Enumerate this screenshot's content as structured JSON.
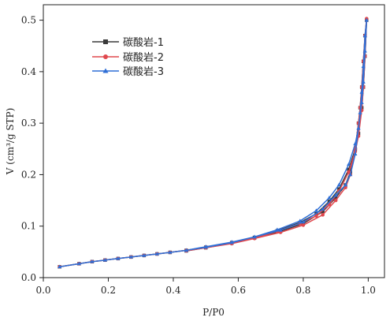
{
  "chart_data": {
    "type": "line",
    "title": "",
    "xlabel": "P/P0",
    "ylabel": "V (cm³/g STP)",
    "xlim": [
      0.0,
      1.05
    ],
    "ylim": [
      0.0,
      0.53
    ],
    "x_ticks": [
      0.0,
      0.2,
      0.4,
      0.6,
      0.8,
      1.0
    ],
    "x_tick_labels": [
      "0.0",
      "0.2",
      "0.4",
      "0.6",
      "0.8",
      "1.0"
    ],
    "y_ticks": [
      0.0,
      0.1,
      0.2,
      0.3,
      0.4,
      0.5
    ],
    "y_tick_labels": [
      "0.0",
      "0.1",
      "0.2",
      "0.3",
      "0.4",
      "0.5"
    ],
    "grid": false,
    "legend_position": "top-left",
    "series": [
      {
        "name": "碳酸岩-1",
        "color": "#3a3a3a",
        "marker": "square",
        "x": [
          0.05,
          0.11,
          0.15,
          0.19,
          0.23,
          0.27,
          0.31,
          0.35,
          0.39,
          0.44,
          0.5,
          0.58,
          0.65,
          0.72,
          0.79,
          0.84,
          0.88,
          0.91,
          0.94,
          0.96,
          0.97,
          0.98,
          0.985,
          0.99,
          0.995,
          0.99,
          0.985,
          0.98,
          0.975,
          0.97,
          0.96,
          0.945,
          0.93,
          0.9,
          0.86,
          0.8,
          0.73,
          0.65,
          0.58,
          0.5,
          0.44
        ],
        "y": [
          0.021,
          0.027,
          0.031,
          0.034,
          0.037,
          0.04,
          0.043,
          0.046,
          0.049,
          0.053,
          0.059,
          0.068,
          0.078,
          0.091,
          0.107,
          0.124,
          0.148,
          0.172,
          0.21,
          0.25,
          0.28,
          0.33,
          0.37,
          0.43,
          0.5,
          0.47,
          0.42,
          0.37,
          0.33,
          0.3,
          0.25,
          0.205,
          0.18,
          0.155,
          0.128,
          0.105,
          0.09,
          0.077,
          0.067,
          0.058,
          0.052
        ]
      },
      {
        "name": "碳酸岩-2",
        "color": "#e0484e",
        "marker": "circle",
        "x": [
          0.05,
          0.11,
          0.15,
          0.19,
          0.23,
          0.27,
          0.31,
          0.35,
          0.39,
          0.44,
          0.5,
          0.58,
          0.65,
          0.72,
          0.79,
          0.84,
          0.88,
          0.91,
          0.94,
          0.96,
          0.97,
          0.98,
          0.985,
          0.99,
          0.995,
          0.99,
          0.985,
          0.98,
          0.975,
          0.97,
          0.96,
          0.945,
          0.93,
          0.9,
          0.86,
          0.8,
          0.73,
          0.65,
          0.58,
          0.5,
          0.44
        ],
        "y": [
          0.021,
          0.027,
          0.031,
          0.034,
          0.037,
          0.04,
          0.043,
          0.046,
          0.049,
          0.053,
          0.059,
          0.068,
          0.077,
          0.09,
          0.105,
          0.12,
          0.142,
          0.168,
          0.205,
          0.245,
          0.275,
          0.325,
          0.37,
          0.43,
          0.503,
          0.47,
          0.42,
          0.37,
          0.33,
          0.3,
          0.25,
          0.2,
          0.175,
          0.15,
          0.122,
          0.102,
          0.088,
          0.076,
          0.066,
          0.058,
          0.052
        ]
      },
      {
        "name": "碳酸岩-3",
        "color": "#2f6fd6",
        "marker": "triangle",
        "x": [
          0.05,
          0.11,
          0.15,
          0.19,
          0.23,
          0.27,
          0.31,
          0.35,
          0.39,
          0.44,
          0.5,
          0.58,
          0.65,
          0.72,
          0.79,
          0.84,
          0.88,
          0.91,
          0.94,
          0.96,
          0.97,
          0.98,
          0.985,
          0.99,
          0.995,
          0.99,
          0.985,
          0.98,
          0.975,
          0.97,
          0.96,
          0.945,
          0.93,
          0.9,
          0.86,
          0.8,
          0.73,
          0.65,
          0.58,
          0.5,
          0.44
        ],
        "y": [
          0.021,
          0.027,
          0.031,
          0.034,
          0.037,
          0.04,
          0.043,
          0.046,
          0.049,
          0.053,
          0.06,
          0.069,
          0.079,
          0.093,
          0.11,
          0.13,
          0.155,
          0.18,
          0.22,
          0.26,
          0.29,
          0.34,
          0.38,
          0.44,
          0.5,
          0.47,
          0.41,
          0.36,
          0.32,
          0.29,
          0.24,
          0.2,
          0.18,
          0.16,
          0.133,
          0.108,
          0.092,
          0.079,
          0.068,
          0.059,
          0.053
        ]
      }
    ]
  }
}
